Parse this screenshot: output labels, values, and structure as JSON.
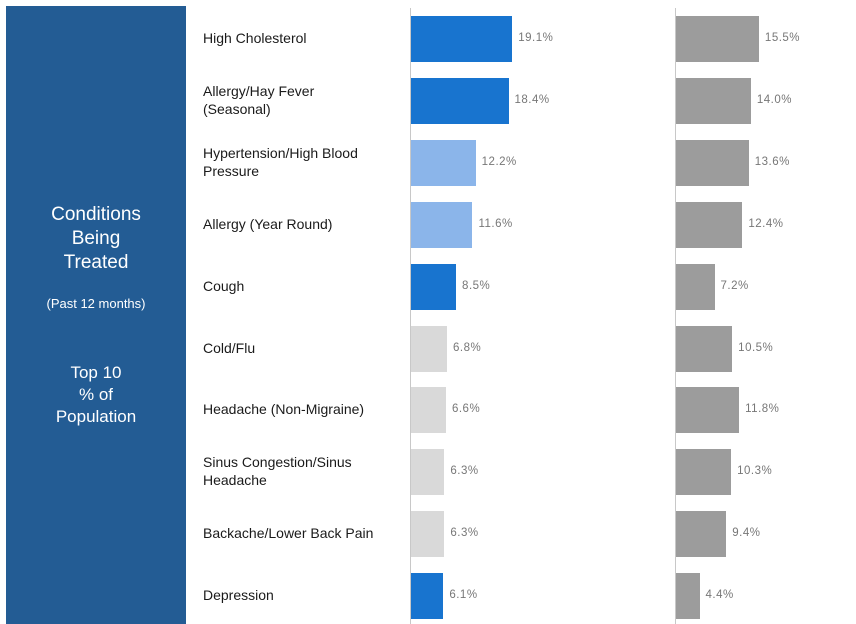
{
  "sidebar": {
    "title": "Conditions\nBeing\nTreated",
    "subtitle": "(Past 12 months)",
    "top_text": "Top 10\n% of\nPopulation"
  },
  "colors": {
    "sidebar": "#235c94",
    "bar_dark_blue": "#1874cf",
    "bar_light_blue": "#8bb5ea",
    "bar_light_gray": "#d9d9d9",
    "bar_gray": "#9c9c9c"
  },
  "chart_data": {
    "type": "bar",
    "orientation": "horizontal",
    "categories": [
      "High Cholesterol",
      "Allergy/Hay Fever\n(Seasonal)",
      "Hypertension/High Blood\nPressure",
      "Allergy (Year Round)",
      "Cough",
      "Cold/Flu",
      "Headache (Non-Migraine)",
      "Sinus Congestion/Sinus\nHeadache",
      "Backache/Lower Back Pain",
      "Depression"
    ],
    "series": [
      {
        "values": [
          19.1,
          18.4,
          12.2,
          11.6,
          8.5,
          6.8,
          6.6,
          6.3,
          6.3,
          6.1
        ],
        "labels": [
          "19.1%",
          "18.4%",
          "12.2%",
          "11.6%",
          "8.5%",
          "6.8%",
          "6.6%",
          "6.3%",
          "6.3%",
          "6.1%"
        ],
        "colors": [
          "#1874cf",
          "#1874cf",
          "#8bb5ea",
          "#8bb5ea",
          "#1874cf",
          "#d9d9d9",
          "#d9d9d9",
          "#d9d9d9",
          "#d9d9d9",
          "#1874cf"
        ]
      },
      {
        "values": [
          15.5,
          14.0,
          13.6,
          12.4,
          7.2,
          10.5,
          11.8,
          10.3,
          9.4,
          4.4
        ],
        "labels": [
          "15.5%",
          "14.0%",
          "13.6%",
          "12.4%",
          "7.2%",
          "10.5%",
          "11.8%",
          "10.3%",
          "9.4%",
          "4.4%"
        ],
        "colors": [
          "#9c9c9c",
          "#9c9c9c",
          "#9c9c9c",
          "#9c9c9c",
          "#9c9c9c",
          "#9c9c9c",
          "#9c9c9c",
          "#9c9c9c",
          "#9c9c9c",
          "#9c9c9c"
        ]
      }
    ],
    "xlim": [
      0,
      20
    ],
    "grid": false,
    "legend": "none"
  }
}
